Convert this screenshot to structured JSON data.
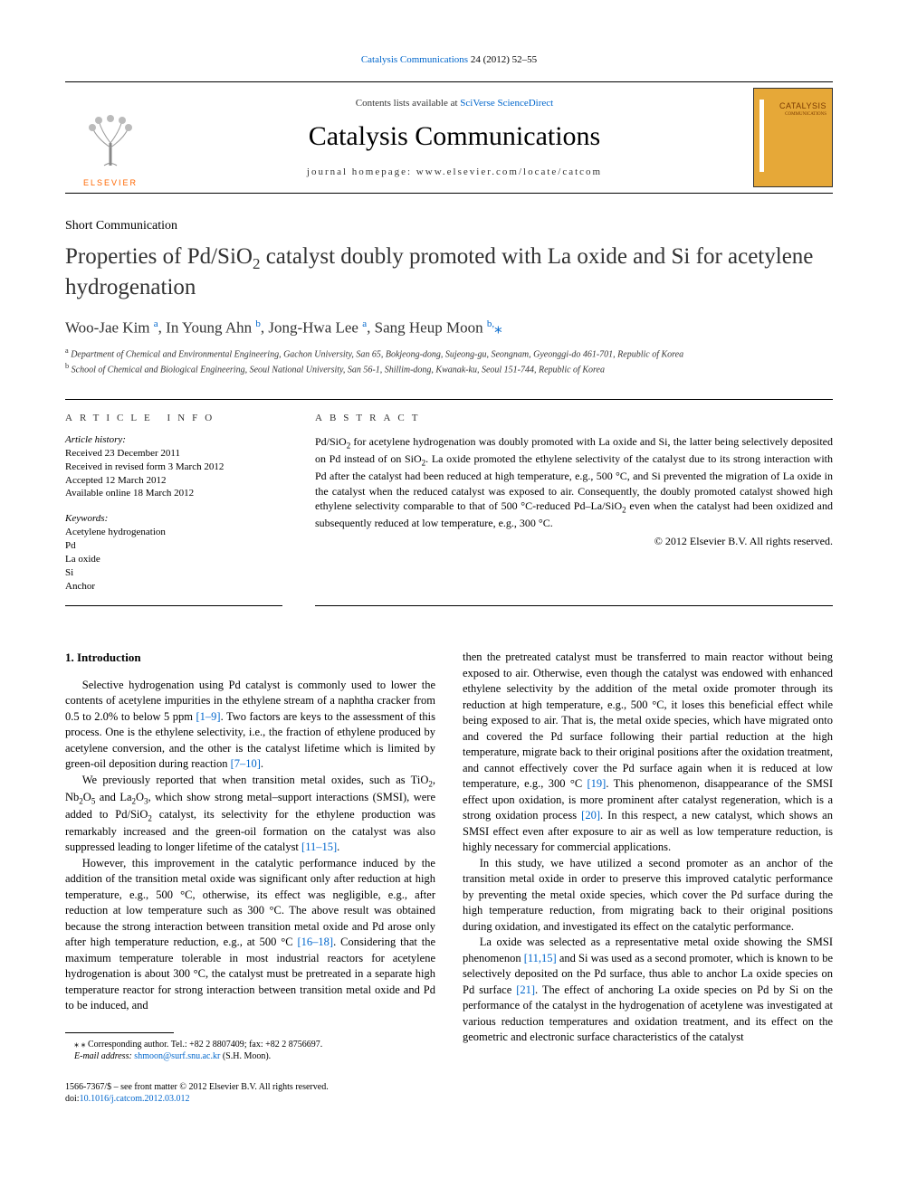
{
  "top_link": {
    "journal": "Catalysis Communications",
    "citation": " 24 (2012) 52–55"
  },
  "masthead": {
    "contents_prefix": "Contents lists available at ",
    "contents_link": "SciVerse ScienceDirect",
    "journal_name": "Catalysis Communications",
    "homepage_label": "journal homepage: www.elsevier.com/locate/catcom",
    "publisher": "ELSEVIER",
    "cover_title": "CATALYSIS",
    "cover_sub": "COMMUNICATIONS",
    "colors": {
      "link": "#0066cc",
      "elsevier_orange": "#ff6600",
      "cover_bg": "#e6a838",
      "cover_text": "#7a3a00"
    }
  },
  "article": {
    "type": "Short Communication",
    "title_pre": "Properties of Pd/SiO",
    "title_sub": "2",
    "title_post": " catalyst doubly promoted with La oxide and Si for acetylene hydrogenation",
    "authors_html": "Woo-Jae Kim <sup>a</sup>, In Young Ahn <sup>b</sup>, Jong-Hwa Lee <sup>a</sup>, Sang Heup Moon <sup>b,</sup><span class='star'>⁎</span>",
    "affiliations": [
      {
        "sup": "a",
        "text": " Department of Chemical and Environmental Engineering, Gachon University, San 65, Bokjeong-dong, Sujeong-gu, Seongnam, Gyeonggi-do 461-701, Republic of Korea"
      },
      {
        "sup": "b",
        "text": " School of Chemical and Biological Engineering, Seoul National University, San 56-1, Shillim-dong, Kwanak-ku, Seoul 151-744, Republic of Korea"
      }
    ]
  },
  "info": {
    "heading": "ARTICLE INFO",
    "history_label": "Article history:",
    "history": [
      "Received 23 December 2011",
      "Received in revised form 3 March 2012",
      "Accepted 12 March 2012",
      "Available online 18 March 2012"
    ],
    "keywords_label": "Keywords:",
    "keywords": [
      "Acetylene hydrogenation",
      "Pd",
      "La oxide",
      "Si",
      "Anchor"
    ]
  },
  "abstract": {
    "heading": "ABSTRACT",
    "text_html": "Pd/SiO<sub>2</sub> for acetylene hydrogenation was doubly promoted with La oxide and Si, the latter being selectively deposited on Pd instead of on SiO<sub>2</sub>. La oxide promoted the ethylene selectivity of the catalyst due to its strong interaction with Pd after the catalyst had been reduced at high temperature, e.g., 500 °C, and Si prevented the migration of La oxide in the catalyst when the reduced catalyst was exposed to air. Consequently, the doubly promoted catalyst showed high ethylene selectivity comparable to that of 500 °C-reduced Pd–La/SiO<sub>2</sub> even when the catalyst had been oxidized and subsequently reduced at low temperature, e.g., 300 °C.",
    "copyright": "© 2012 Elsevier B.V. All rights reserved."
  },
  "body": {
    "heading": "1. Introduction",
    "left_paragraphs": [
      "Selective hydrogenation using Pd catalyst is commonly used to lower the contents of acetylene impurities in the ethylene stream of a naphtha cracker from 0.5 to 2.0% to below 5 ppm <span class='cite'>[1–9]</span>. Two factors are keys to the assessment of this process. One is the ethylene selectivity, i.e., the fraction of ethylene produced by acetylene conversion, and the other is the catalyst lifetime which is limited by green-oil deposition during reaction <span class='cite'>[7–10]</span>.",
      "We previously reported that when transition metal oxides, such as TiO<sub>2</sub>, Nb<sub>2</sub>O<sub>5</sub> and La<sub>2</sub>O<sub>3</sub>, which show strong metal–support interactions (SMSI), were added to Pd/SiO<sub>2</sub> catalyst, its selectivity for the ethylene production was remarkably increased and the green-oil formation on the catalyst was also suppressed leading to longer lifetime of the catalyst <span class='cite'>[11–15]</span>.",
      "However, this improvement in the catalytic performance induced by the addition of the transition metal oxide was significant only after reduction at high temperature, e.g., 500 °C, otherwise, its effect was negligible, e.g., after reduction at low temperature such as 300 °C. The above result was obtained because the strong interaction between transition metal oxide and Pd arose only after high temperature reduction, e.g., at 500 °C <span class='cite'>[16–18]</span>. Considering that the maximum temperature tolerable in most industrial reactors for acetylene hydrogenation is about 300 °C, the catalyst must be pretreated in a separate high temperature reactor for strong interaction between transition metal oxide and Pd to be induced, and"
    ],
    "right_paragraphs": [
      "then the pretreated catalyst must be transferred to main reactor without being exposed to air. Otherwise, even though the catalyst was endowed with enhanced ethylene selectivity by the addition of the metal oxide promoter through its reduction at high temperature, e.g., 500 °C, it loses this beneficial effect while being exposed to air. That is, the metal oxide species, which have migrated onto and covered the Pd surface following their partial reduction at the high temperature, migrate back to their original positions after the oxidation treatment, and cannot effectively cover the Pd surface again when it is reduced at low temperature, e.g., 300 °C <span class='cite'>[19]</span>. This phenomenon, disappearance of the SMSI effect upon oxidation, is more prominent after catalyst regeneration, which is a strong oxidation process <span class='cite'>[20]</span>. In this respect, a new catalyst, which shows an SMSI effect even after exposure to air as well as low temperature reduction, is highly necessary for commercial applications.",
      "In this study, we have utilized a second promoter as an anchor of the transition metal oxide in order to preserve this improved catalytic performance by preventing the metal oxide species, which cover the Pd surface during the high temperature reduction, from migrating back to their original positions during oxidation, and investigated its effect on the catalytic performance.",
      "La oxide was selected as a representative metal oxide showing the SMSI phenomenon <span class='cite'>[11,15]</span> and Si was used as a second promoter, which is known to be selectively deposited on the Pd surface, thus able to anchor La oxide species on Pd surface <span class='cite'>[21]</span>. The effect of anchoring La oxide species on Pd by Si on the performance of the catalyst in the hydrogenation of acetylene was investigated at various reduction temperatures and oxidation treatment, and its effect on the geometric and electronic surface characteristics of the catalyst"
    ]
  },
  "footnote": {
    "line1_pre": "⁎ Corresponding author. Tel.: ",
    "tel": "+82 2 8807409",
    "fax_pre": "; fax: ",
    "fax": "+82 2 8756697",
    "line2_label": "E-mail address: ",
    "email": "shmoon@surf.snu.ac.kr",
    "line2_post": " (S.H. Moon)."
  },
  "footer": {
    "line1": "1566-7367/$ – see front matter © 2012 Elsevier B.V. All rights reserved.",
    "doi_pre": "doi:",
    "doi": "10.1016/j.catcom.2012.03.012"
  }
}
